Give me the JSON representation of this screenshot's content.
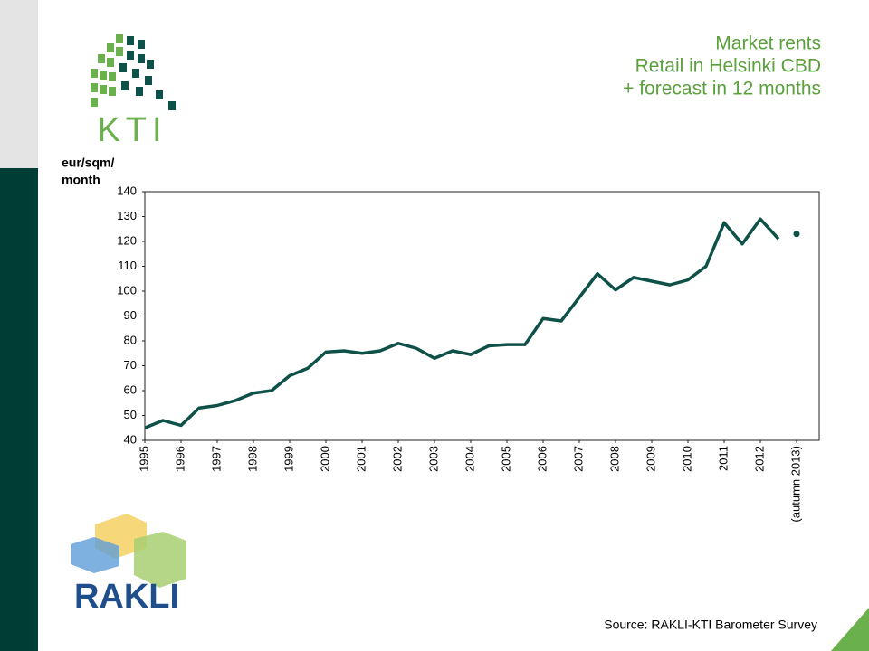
{
  "chart_data": {
    "type": "line",
    "title": [
      "Market rents",
      "Retail in Helsinki CBD",
      "+ forecast in 12 months"
    ],
    "y_label": [
      "eur/sqm/",
      "month"
    ],
    "xlim": [
      1995,
      2013.625
    ],
    "xticks": [
      1995,
      1996,
      1997,
      1998,
      1999,
      2000,
      2001,
      2002,
      2003,
      2004,
      2005,
      2006,
      2007,
      2008,
      2009,
      2010,
      2011,
      2012,
      {
        "value": 2013,
        "label": "(autumn 2013)"
      }
    ],
    "ylim": [
      40,
      140
    ],
    "yticks": [
      40,
      50,
      60,
      70,
      80,
      90,
      100,
      110,
      120,
      130,
      140
    ],
    "series": [
      {
        "color": "#0e5148",
        "x": [
          1995,
          1995.5,
          1996,
          1996.5,
          1997,
          1997.5,
          1998,
          1998.5,
          1999,
          1999.5,
          2000,
          2000.5,
          2001,
          2001.5,
          2002,
          2002.5,
          2003,
          2003.5,
          2004,
          2004.5,
          2005,
          2005.5,
          2006,
          2006.5,
          2007,
          2007.5,
          2008,
          2008.5,
          2009,
          2009.5,
          2010,
          2010.5,
          2011,
          2011.5,
          2012,
          2012.5
        ],
        "values": [
          45,
          48,
          46,
          53,
          54,
          56,
          59,
          60,
          66,
          69,
          75.5,
          76,
          75,
          76,
          79,
          77,
          73,
          76,
          74.5,
          78,
          78.5,
          78.5,
          89,
          88,
          97.5,
          107,
          100.5,
          105.5,
          104,
          102.5,
          104.5,
          110,
          127.5,
          119,
          129,
          121
        ]
      },
      {
        "color": "#0e5148",
        "marker": "dot",
        "x": [
          2013
        ],
        "values": [
          123
        ]
      }
    ],
    "source": "Source: RAKLI-KTI Barometer Survey",
    "logos": [
      "KTI",
      "RAKLI"
    ]
  }
}
